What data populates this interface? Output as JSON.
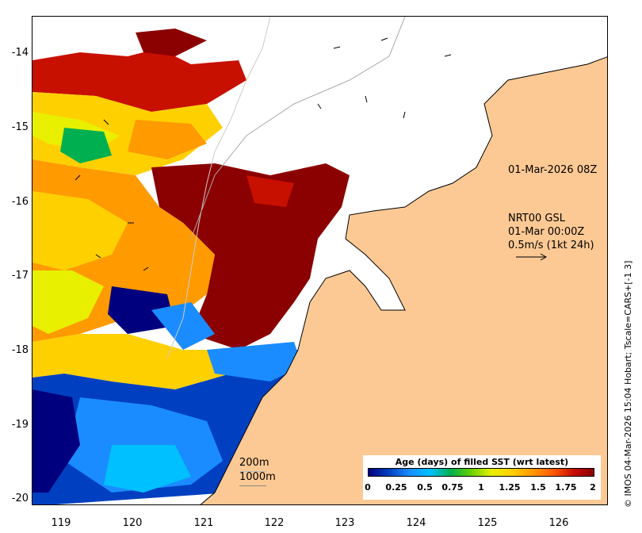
{
  "map": {
    "y_ticks": [
      "-14",
      "-15",
      "-16",
      "-17",
      "-18",
      "-19",
      "-20"
    ],
    "x_ticks": [
      "119",
      "120",
      "121",
      "122",
      "123",
      "124",
      "125",
      "126"
    ],
    "timestamp_label": "01-Mar-2026 08Z",
    "current_info": {
      "line1": "NRT00 GSL",
      "line2": "01-Mar 00:00Z",
      "line3": "0.5m/s (1kt 24h)"
    },
    "scale": {
      "contour1": "200m",
      "contour2": "1000m"
    },
    "credit": "© IMOS 04-Mar-2026 15:04 Hobart; Tscale=CARS+[-1 3]",
    "colors": {
      "land": "#fcc994",
      "no_data": "#ffffff"
    }
  },
  "legend": {
    "title": "Age (days) of filled SST (wrt latest)",
    "ticks": [
      "0",
      "0.25",
      "0.5",
      "0.75",
      "1",
      "1.25",
      "1.5",
      "1.75",
      "2"
    ],
    "colormap": [
      "#00007f",
      "#0040c0",
      "#1a8cff",
      "#00c0ff",
      "#00b050",
      "#66d000",
      "#e8f000",
      "#ffd000",
      "#ff9a00",
      "#ff5a00",
      "#c81000",
      "#8b0000"
    ]
  }
}
